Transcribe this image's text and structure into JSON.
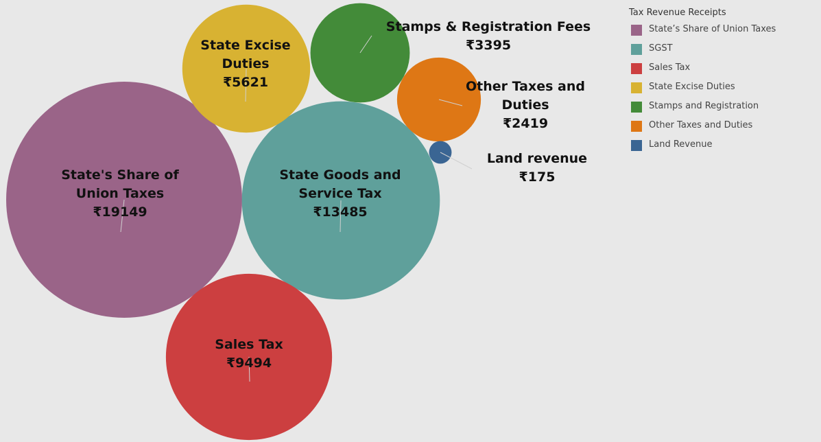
{
  "chart_data": {
    "type": "packed_bubble",
    "categories": [
      "State's Share of Union Taxes",
      "State Goods and Service Tax",
      "Sales Tax",
      "State Excise Duties",
      "Stamps & Registration Fees",
      "Other Taxes and Duties",
      "Land revenue"
    ],
    "values": [
      19149,
      13485,
      9494,
      5621,
      3395,
      2419,
      175
    ],
    "value_labels": [
      "₹19149",
      "₹13485",
      "₹9494",
      "₹5621",
      "₹3395",
      "₹2419",
      "₹175"
    ],
    "colors": [
      "#9a6488",
      "#5fa09b",
      "#cc3f40",
      "#d8b232",
      "#438b39",
      "#de7715",
      "#3a6593"
    ],
    "legend": {
      "title": "Tax Revenue Receipts",
      "entries": [
        "State’s Share of Union Taxes",
        "SGST",
        "Sales Tax",
        "State Excise Duties",
        "Stamps and Registration",
        "Other Taxes and Duties",
        "Land Revenue"
      ],
      "position": "top-right"
    }
  }
}
